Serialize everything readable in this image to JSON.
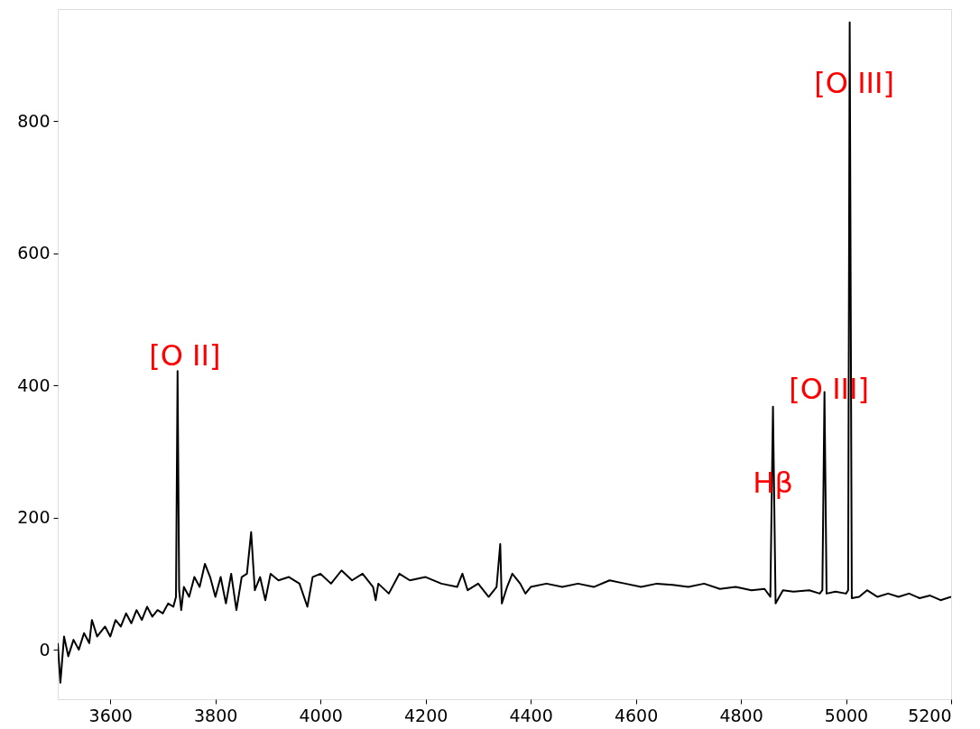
{
  "chart_data": {
    "type": "line",
    "xlim": [
      3500,
      5200
    ],
    "ylim": [
      -75,
      970
    ],
    "xticks": [
      3600,
      3800,
      4000,
      4200,
      4400,
      4600,
      4800,
      5000,
      5200
    ],
    "yticks": [
      0,
      200,
      400,
      600,
      800
    ],
    "grid": false,
    "marker": "none",
    "line_style": "solid",
    "series": [
      {
        "color": "#000000",
        "x": [
          3500,
          3505,
          3512,
          3520,
          3530,
          3540,
          3550,
          3560,
          3565,
          3575,
          3590,
          3600,
          3610,
          3620,
          3630,
          3640,
          3650,
          3660,
          3670,
          3680,
          3690,
          3700,
          3710,
          3720,
          3725,
          3728,
          3731,
          3735,
          3740,
          3750,
          3760,
          3770,
          3780,
          3790,
          3800,
          3810,
          3820,
          3830,
          3840,
          3850,
          3860,
          3868,
          3875,
          3885,
          3895,
          3905,
          3920,
          3940,
          3960,
          3975,
          3985,
          4000,
          4020,
          4040,
          4060,
          4080,
          4100,
          4105,
          4110,
          4130,
          4150,
          4170,
          4200,
          4230,
          4260,
          4270,
          4280,
          4300,
          4320,
          4335,
          4342,
          4345,
          4355,
          4365,
          4380,
          4390,
          4400,
          4430,
          4460,
          4490,
          4520,
          4550,
          4580,
          4610,
          4640,
          4670,
          4700,
          4730,
          4760,
          4790,
          4820,
          4845,
          4856,
          4861,
          4866,
          4880,
          4900,
          4930,
          4950,
          4955,
          4959,
          4963,
          4980,
          5000,
          5004,
          5007,
          5011,
          5025,
          5040,
          5060,
          5080,
          5100,
          5120,
          5140,
          5160,
          5180,
          5200
        ],
        "values": [
          10,
          -50,
          20,
          -10,
          15,
          0,
          25,
          10,
          45,
          20,
          35,
          20,
          45,
          35,
          55,
          40,
          60,
          45,
          65,
          50,
          60,
          55,
          70,
          65,
          80,
          422,
          90,
          60,
          95,
          80,
          110,
          95,
          130,
          110,
          80,
          110,
          70,
          115,
          60,
          110,
          115,
          178,
          90,
          110,
          75,
          115,
          105,
          110,
          100,
          65,
          110,
          115,
          100,
          120,
          105,
          115,
          95,
          75,
          100,
          85,
          115,
          105,
          110,
          100,
          95,
          115,
          90,
          100,
          80,
          95,
          160,
          70,
          95,
          115,
          100,
          85,
          95,
          100,
          95,
          100,
          95,
          105,
          100,
          95,
          100,
          98,
          95,
          100,
          92,
          95,
          90,
          92,
          80,
          368,
          70,
          90,
          88,
          90,
          85,
          90,
          390,
          85,
          88,
          85,
          90,
          950,
          78,
          80,
          90,
          80,
          85,
          80,
          85,
          78,
          82,
          75,
          80
        ]
      }
    ],
    "annotations": [
      {
        "text": "[O II]",
        "x": 3728,
        "y": 422
      },
      {
        "text": "Hβ",
        "x": 4861,
        "y": 368
      },
      {
        "text": "[O III]",
        "x": 4959,
        "y": 390
      },
      {
        "text": "[O III]",
        "x": 5007,
        "y": 950
      }
    ]
  }
}
